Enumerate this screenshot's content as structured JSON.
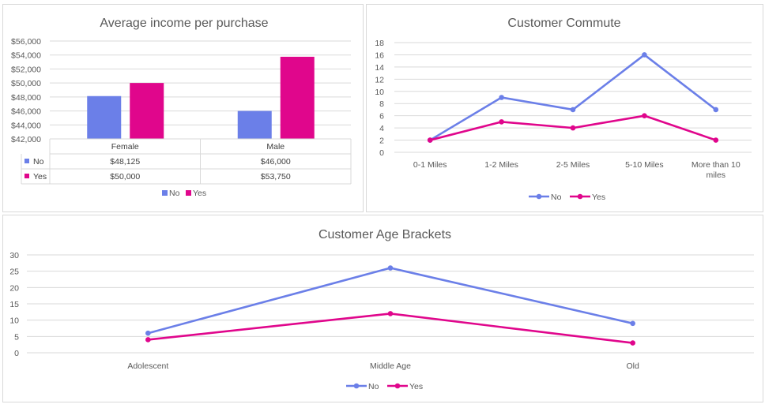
{
  "colors": {
    "no": "#6b7fe8",
    "yes": "#e0068c",
    "grid": "#d9d9d9",
    "text": "#595959"
  },
  "chart_data": [
    {
      "id": "income",
      "type": "bar",
      "title": "Average income per purchase",
      "categories": [
        "Female",
        "Male"
      ],
      "series": [
        {
          "name": "No",
          "values": [
            48125,
            46000
          ],
          "labels": [
            "$48,125",
            "$46,000"
          ]
        },
        {
          "name": "Yes",
          "values": [
            50000,
            53750
          ],
          "labels": [
            "$50,000",
            "$53,750"
          ]
        }
      ],
      "ylim": [
        42000,
        56000
      ],
      "yticks": [
        "$42,000",
        "$44,000",
        "$46,000",
        "$48,000",
        "$50,000",
        "$52,000",
        "$54,000",
        "$56,000"
      ],
      "grid": true,
      "legend": "bottom",
      "data_table": true
    },
    {
      "id": "commute",
      "type": "line",
      "title": "Customer Commute",
      "categories": [
        "0-1 Miles",
        "1-2 Miles",
        "2-5 Miles",
        "5-10 Miles",
        "More than 10 miles"
      ],
      "category_lines": [
        [
          "0-1 Miles"
        ],
        [
          "1-2 Miles"
        ],
        [
          "2-5 Miles"
        ],
        [
          "5-10 Miles"
        ],
        [
          "More than 10",
          "miles"
        ]
      ],
      "series": [
        {
          "name": "No",
          "values": [
            2,
            9,
            7,
            16,
            7
          ]
        },
        {
          "name": "Yes",
          "values": [
            2,
            5,
            4,
            6,
            2
          ]
        }
      ],
      "ylim": [
        0,
        18
      ],
      "yticks": [
        "0",
        "2",
        "4",
        "6",
        "8",
        "10",
        "12",
        "14",
        "16",
        "18"
      ],
      "grid": true,
      "legend": "bottom"
    },
    {
      "id": "age",
      "type": "line",
      "title": "Customer Age Brackets",
      "categories": [
        "Adolescent",
        "Middle Age",
        "Old"
      ],
      "series": [
        {
          "name": "No",
          "values": [
            6,
            26,
            9
          ]
        },
        {
          "name": "Yes",
          "values": [
            4,
            12,
            3
          ]
        }
      ],
      "ylim": [
        0,
        30
      ],
      "yticks": [
        "0",
        "5",
        "10",
        "15",
        "20",
        "25",
        "30"
      ],
      "grid": true,
      "legend": "bottom"
    }
  ]
}
